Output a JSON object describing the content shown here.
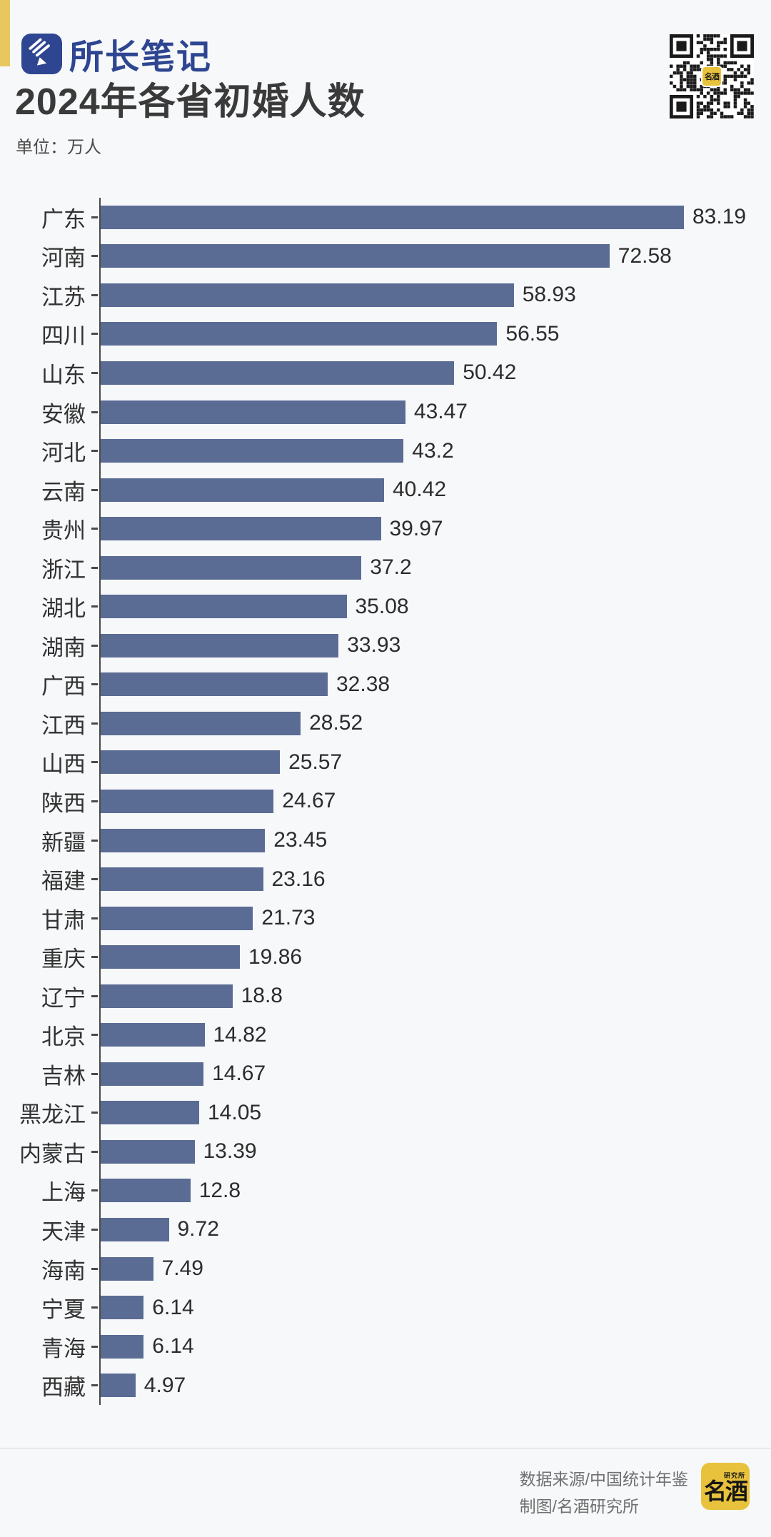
{
  "header": {
    "brand": "所长笔记",
    "title": "2024年各省初婚人数",
    "unit_label": "单位：万人"
  },
  "colors": {
    "accent_yellow": "#e9c75f",
    "brand_blue": "#2e4691",
    "bar_blue": "#5a6b94",
    "logo_yellow": "#e8c23c"
  },
  "chart_data": {
    "type": "bar",
    "orientation": "horizontal",
    "title": "2024年各省初婚人数",
    "unit": "万人",
    "bar_color": "#5a6b94",
    "grid": false,
    "legend": false,
    "xlim": [
      0,
      88
    ],
    "categories": [
      "广东",
      "河南",
      "江苏",
      "四川",
      "山东",
      "安徽",
      "河北",
      "云南",
      "贵州",
      "浙江",
      "湖北",
      "湖南",
      "广西",
      "江西",
      "山西",
      "陕西",
      "新疆",
      "福建",
      "甘肃",
      "重庆",
      "辽宁",
      "北京",
      "吉林",
      "黑龙江",
      "内蒙古",
      "上海",
      "天津",
      "海南",
      "宁夏",
      "青海",
      "西藏"
    ],
    "values": [
      83.19,
      72.58,
      58.93,
      56.55,
      50.42,
      43.47,
      43.2,
      40.42,
      39.97,
      37.2,
      35.08,
      33.93,
      32.38,
      28.52,
      25.57,
      24.67,
      23.45,
      23.16,
      21.73,
      19.86,
      18.8,
      14.82,
      14.67,
      14.05,
      13.39,
      12.8,
      9.72,
      7.49,
      6.14,
      6.14,
      4.97
    ]
  },
  "qr": {
    "center_logo": "名酒"
  },
  "footer": {
    "source_line": "数据来源/中国统计年鉴",
    "credit_line": "制图/名酒研究所",
    "logo_small": "研究所",
    "logo_main": "名酒"
  }
}
